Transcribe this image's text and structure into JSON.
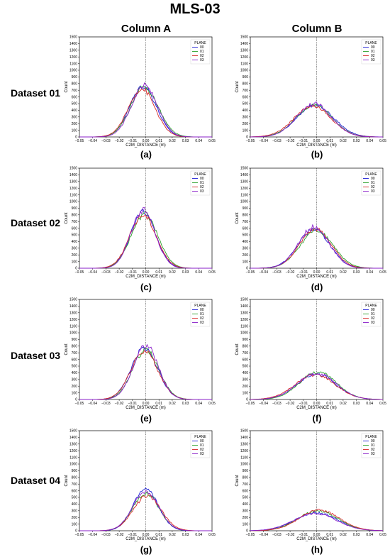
{
  "figure": {
    "title": "MLS-03",
    "columns": [
      "Column A",
      "Column B"
    ],
    "rows": [
      "Dataset 01",
      "Dataset 02",
      "Dataset 03",
      "Dataset 04"
    ]
  },
  "chart_data": [
    {
      "type": "line",
      "panel_label": "(a)",
      "row": "Dataset 01",
      "column": "Column A",
      "xlabel": "C2M_DISTANCE (m)",
      "ylabel": "Count",
      "legend_title": "PLANE",
      "legend_position": "top-right",
      "xlim": [
        -0.05,
        0.05
      ],
      "ylim": [
        0,
        1500
      ],
      "vline_x": 0.0,
      "series": [
        {
          "name": "00",
          "peak": 760,
          "mean": -0.002,
          "sd": 0.01
        },
        {
          "name": "01",
          "peak": 740,
          "mean": -0.001,
          "sd": 0.0105
        },
        {
          "name": "02",
          "peak": 720,
          "mean": -0.003,
          "sd": 0.01
        },
        {
          "name": "03",
          "peak": 780,
          "mean": -0.001,
          "sd": 0.0098
        }
      ]
    },
    {
      "type": "line",
      "panel_label": "(b)",
      "row": "Dataset 01",
      "column": "Column B",
      "xlabel": "C2M_DISTANCE (m)",
      "ylabel": "Count",
      "legend_title": "PLANE",
      "legend_position": "top-right",
      "xlim": [
        -0.05,
        0.05
      ],
      "ylim": [
        0,
        1500
      ],
      "vline_x": 0.0,
      "series": [
        {
          "name": "00",
          "peak": 470,
          "mean": -0.001,
          "sd": 0.014
        },
        {
          "name": "01",
          "peak": 480,
          "mean": -0.002,
          "sd": 0.0135
        },
        {
          "name": "02",
          "peak": 460,
          "mean": -0.003,
          "sd": 0.014
        },
        {
          "name": "03",
          "peak": 500,
          "mean": -0.002,
          "sd": 0.013
        }
      ]
    },
    {
      "type": "line",
      "panel_label": "(c)",
      "row": "Dataset 02",
      "column": "Column A",
      "xlabel": "C2M_DISTANCE (m)",
      "ylabel": "Count",
      "legend_title": "PLANE",
      "legend_position": "top-right",
      "xlim": [
        -0.05,
        0.05
      ],
      "ylim": [
        0,
        1500
      ],
      "vline_x": 0.0,
      "series": [
        {
          "name": "00",
          "peak": 840,
          "mean": -0.002,
          "sd": 0.0095
        },
        {
          "name": "01",
          "peak": 810,
          "mean": -0.001,
          "sd": 0.01
        },
        {
          "name": "02",
          "peak": 800,
          "mean": -0.002,
          "sd": 0.01
        },
        {
          "name": "03",
          "peak": 870,
          "mean": -0.002,
          "sd": 0.0092
        }
      ]
    },
    {
      "type": "line",
      "panel_label": "(d)",
      "row": "Dataset 02",
      "column": "Column B",
      "xlabel": "C2M_DISTANCE (m)",
      "ylabel": "Count",
      "legend_title": "PLANE",
      "legend_position": "top-right",
      "xlim": [
        -0.05,
        0.05
      ],
      "ylim": [
        0,
        1500
      ],
      "vline_x": 0.0,
      "series": [
        {
          "name": "00",
          "peak": 580,
          "mean": -0.002,
          "sd": 0.012
        },
        {
          "name": "01",
          "peak": 560,
          "mean": 0.0,
          "sd": 0.0125
        },
        {
          "name": "02",
          "peak": 590,
          "mean": -0.001,
          "sd": 0.012
        },
        {
          "name": "03",
          "peak": 620,
          "mean": -0.002,
          "sd": 0.0115
        }
      ]
    },
    {
      "type": "line",
      "panel_label": "(e)",
      "row": "Dataset 03",
      "column": "Column A",
      "xlabel": "C2M_DISTANCE (m)",
      "ylabel": "Count",
      "legend_title": "PLANE",
      "legend_position": "top-right",
      "xlim": [
        -0.05,
        0.05
      ],
      "ylim": [
        0,
        1500
      ],
      "vline_x": 0.0,
      "series": [
        {
          "name": "00",
          "peak": 770,
          "mean": -0.001,
          "sd": 0.01
        },
        {
          "name": "01",
          "peak": 740,
          "mean": 0.0,
          "sd": 0.01
        },
        {
          "name": "02",
          "peak": 730,
          "mean": -0.001,
          "sd": 0.0102
        },
        {
          "name": "03",
          "peak": 810,
          "mean": 0.0,
          "sd": 0.0095
        }
      ]
    },
    {
      "type": "line",
      "panel_label": "(f)",
      "row": "Dataset 03",
      "column": "Column B",
      "xlabel": "C2M_DISTANCE (m)",
      "ylabel": "Count",
      "legend_title": "PLANE",
      "legend_position": "top-right",
      "xlim": [
        -0.05,
        0.05
      ],
      "ylim": [
        0,
        1500
      ],
      "vline_x": 0.0,
      "series": [
        {
          "name": "00",
          "peak": 380,
          "mean": 0.0,
          "sd": 0.0145
        },
        {
          "name": "01",
          "peak": 410,
          "mean": 0.001,
          "sd": 0.014
        },
        {
          "name": "02",
          "peak": 370,
          "mean": -0.001,
          "sd": 0.015
        },
        {
          "name": "03",
          "peak": 390,
          "mean": 0.0,
          "sd": 0.0145
        }
      ]
    },
    {
      "type": "line",
      "panel_label": "(g)",
      "row": "Dataset 04",
      "column": "Column A",
      "xlabel": "C2M_DISTANCE (m)",
      "ylabel": "Count",
      "legend_title": "PLANE",
      "legend_position": "top-right",
      "xlim": [
        -0.05,
        0.05
      ],
      "ylim": [
        0,
        1500
      ],
      "vline_x": 0.0,
      "series": [
        {
          "name": "00",
          "peak": 620,
          "mean": 0.0,
          "sd": 0.0095
        },
        {
          "name": "01",
          "peak": 560,
          "mean": 0.0,
          "sd": 0.01
        },
        {
          "name": "02",
          "peak": 520,
          "mean": 0.001,
          "sd": 0.0105
        },
        {
          "name": "03",
          "peak": 580,
          "mean": 0.0,
          "sd": 0.01
        }
      ]
    },
    {
      "type": "line",
      "panel_label": "(h)",
      "row": "Dataset 04",
      "column": "Column B",
      "xlabel": "C2M_DISTANCE (m)",
      "ylabel": "Count",
      "legend_title": "PLANE",
      "legend_position": "top-right",
      "xlim": [
        -0.05,
        0.05
      ],
      "ylim": [
        0,
        1500
      ],
      "vline_x": 0.0,
      "series": [
        {
          "name": "00",
          "peak": 270,
          "mean": 0.0,
          "sd": 0.016
        },
        {
          "name": "01",
          "peak": 300,
          "mean": 0.001,
          "sd": 0.015
        },
        {
          "name": "02",
          "peak": 310,
          "mean": 0.002,
          "sd": 0.015
        },
        {
          "name": "03",
          "peak": 260,
          "mean": -0.001,
          "sd": 0.016
        }
      ]
    }
  ],
  "colors": {
    "00": "#1f1fd6",
    "01": "#2ca02c",
    "02": "#d62728",
    "03": "#8a1fc9"
  }
}
